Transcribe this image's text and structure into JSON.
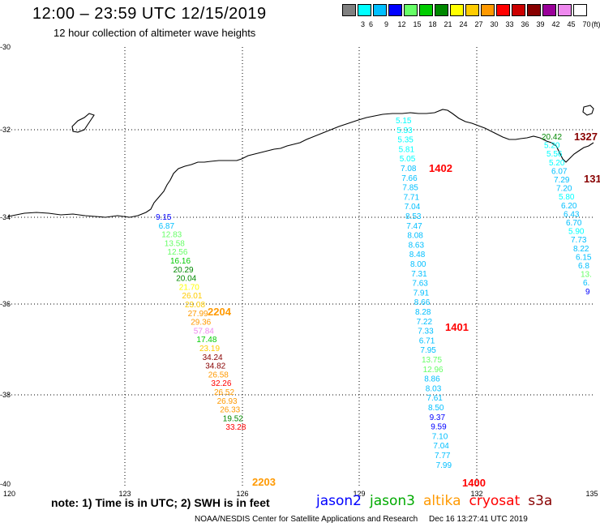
{
  "title": "12:00 – 23:59 UTC 12/15/2019",
  "subtitle": "12 hour collection of altimeter wave heights",
  "color_scale": [
    {
      "label": "3",
      "color": "#808080"
    },
    {
      "label": "6",
      "color": "#00ffff"
    },
    {
      "label": "9",
      "color": "#00bfff"
    },
    {
      "label": "12",
      "color": "#0000ff"
    },
    {
      "label": "15",
      "color": "#66ff66"
    },
    {
      "label": "18",
      "color": "#00cc00"
    },
    {
      "label": "21",
      "color": "#008800"
    },
    {
      "label": "24",
      "color": "#ffff00"
    },
    {
      "label": "27",
      "color": "#ffcc00"
    },
    {
      "label": "30",
      "color": "#ff9900"
    },
    {
      "label": "33",
      "color": "#ff0000"
    },
    {
      "label": "36",
      "color": "#cc0000"
    },
    {
      "label": "39",
      "color": "#880000"
    },
    {
      "label": "42",
      "color": "#990099"
    },
    {
      "label": "45",
      "color": "#ee88ee"
    },
    {
      "label": "70",
      "color": "#ffffff"
    }
  ],
  "scale_unit": "(ft)",
  "lat_labels": [
    "-30",
    "-32",
    "-34",
    "-36",
    "-38",
    "-40"
  ],
  "lon_labels": [
    "120",
    "123",
    "126",
    "129",
    "132",
    "135"
  ],
  "tracks": [
    {
      "name": "west",
      "points": [
        {
          "v": "9.15",
          "c": "#0000ff"
        },
        {
          "v": "6.87",
          "c": "#00bfff"
        },
        {
          "v": "12.83",
          "c": "#66ff66"
        },
        {
          "v": "13.58",
          "c": "#66ff66"
        },
        {
          "v": "12.56",
          "c": "#66ff66"
        },
        {
          "v": "16.16",
          "c": "#00cc00"
        },
        {
          "v": "20.29",
          "c": "#008800"
        },
        {
          "v": "20.04",
          "c": "#008800"
        },
        {
          "v": "21.70",
          "c": "#ffff00"
        },
        {
          "v": "26.01",
          "c": "#ffcc00"
        },
        {
          "v": "23.08",
          "c": "#ffcc00"
        },
        {
          "v": "27.99",
          "c": "#ff9900"
        },
        {
          "v": "29.36",
          "c": "#ff9900"
        },
        {
          "v": "57.84",
          "c": "#ee88ee"
        },
        {
          "v": "17.48",
          "c": "#00cc00"
        },
        {
          "v": "23.19",
          "c": "#ffcc00"
        },
        {
          "v": "34.24",
          "c": "#880000"
        },
        {
          "v": "34.82",
          "c": "#880000"
        },
        {
          "v": "26.58",
          "c": "#ff9900"
        },
        {
          "v": "32.26",
          "c": "#ff0000"
        },
        {
          "v": "26.52",
          "c": "#ff9900"
        },
        {
          "v": "26.93",
          "c": "#ff9900"
        },
        {
          "v": "26.33",
          "c": "#ff9900"
        },
        {
          "v": "19.52",
          "c": "#008800"
        },
        {
          "v": "33.28",
          "c": "#ff0000"
        }
      ]
    },
    {
      "name": "middle",
      "points": [
        {
          "v": "5.15",
          "c": "#00ffff"
        },
        {
          "v": "5.33",
          "c": "#00ffff"
        },
        {
          "v": "5.35",
          "c": "#00ffff"
        },
        {
          "v": "5.81",
          "c": "#00ffff"
        },
        {
          "v": "5.05",
          "c": "#00ffff"
        },
        {
          "v": "7.08",
          "c": "#00bfff"
        },
        {
          "v": "7.66",
          "c": "#00bfff"
        },
        {
          "v": "7.85",
          "c": "#00bfff"
        },
        {
          "v": "7.71",
          "c": "#00bfff"
        },
        {
          "v": "7.04",
          "c": "#00bfff"
        },
        {
          "v": "8.53",
          "c": "#00bfff"
        },
        {
          "v": "7.47",
          "c": "#00bfff"
        },
        {
          "v": "8.08",
          "c": "#00bfff"
        },
        {
          "v": "8.63",
          "c": "#00bfff"
        },
        {
          "v": "8.48",
          "c": "#00bfff"
        },
        {
          "v": "8.00",
          "c": "#00bfff"
        },
        {
          "v": "7.31",
          "c": "#00bfff"
        },
        {
          "v": "7.63",
          "c": "#00bfff"
        },
        {
          "v": "7.91",
          "c": "#00bfff"
        },
        {
          "v": "8.66",
          "c": "#00bfff"
        },
        {
          "v": "8.28",
          "c": "#00bfff"
        },
        {
          "v": "7.22",
          "c": "#00bfff"
        },
        {
          "v": "7.33",
          "c": "#00bfff"
        },
        {
          "v": "6.71",
          "c": "#00bfff"
        },
        {
          "v": "7.95",
          "c": "#00bfff"
        },
        {
          "v": "13.75",
          "c": "#66ff66"
        },
        {
          "v": "12.96",
          "c": "#66ff66"
        },
        {
          "v": "8.86",
          "c": "#00bfff"
        },
        {
          "v": "8.03",
          "c": "#00bfff"
        },
        {
          "v": "7.61",
          "c": "#00bfff"
        },
        {
          "v": "8.50",
          "c": "#00bfff"
        },
        {
          "v": "9.37",
          "c": "#0000ff"
        },
        {
          "v": "9.59",
          "c": "#0000ff"
        },
        {
          "v": "7.10",
          "c": "#00bfff"
        },
        {
          "v": "7.04",
          "c": "#00bfff"
        },
        {
          "v": "7.77",
          "c": "#00bfff"
        },
        {
          "v": "7.99",
          "c": "#00bfff"
        }
      ]
    },
    {
      "name": "east",
      "points": [
        {
          "v": "20.42",
          "c": "#008800"
        },
        {
          "v": "5.20",
          "c": "#00ffff"
        },
        {
          "v": "5.56",
          "c": "#00ffff"
        },
        {
          "v": "5.20",
          "c": "#00ffff"
        },
        {
          "v": "6.07",
          "c": "#00bfff"
        },
        {
          "v": "7.29",
          "c": "#00bfff"
        },
        {
          "v": "7.20",
          "c": "#00bfff"
        },
        {
          "v": "5.80",
          "c": "#00ffff"
        },
        {
          "v": "6.20",
          "c": "#00bfff"
        },
        {
          "v": "6.43",
          "c": "#00bfff"
        },
        {
          "v": "6.70",
          "c": "#00bfff"
        },
        {
          "v": "5.90",
          "c": "#00ffff"
        },
        {
          "v": "7.73",
          "c": "#00bfff"
        },
        {
          "v": "8.22",
          "c": "#00bfff"
        },
        {
          "v": "6.15",
          "c": "#00bfff"
        },
        {
          "v": "6.8",
          "c": "#00bfff"
        },
        {
          "v": "13.",
          "c": "#66ff66"
        },
        {
          "v": "6.",
          "c": "#00bfff"
        },
        {
          "v": "9",
          "c": "#0000ff"
        }
      ]
    }
  ],
  "time_labels": [
    {
      "text": "2204",
      "c": "#ff9900"
    },
    {
      "text": "2203",
      "c": "#ff9900"
    },
    {
      "text": "1402",
      "c": "#ff0000"
    },
    {
      "text": "1401",
      "c": "#ff0000"
    },
    {
      "text": "1400",
      "c": "#ff0000"
    },
    {
      "text": "1327",
      "c": "#880000"
    },
    {
      "text": "131",
      "c": "#880000"
    }
  ],
  "note": "note:  1) Time is in UTC;  2) SWH is in feet",
  "legend": [
    {
      "name": "jason2",
      "color": "#0000ff"
    },
    {
      "name": "jason3",
      "color": "#00aa00"
    },
    {
      "name": "altika",
      "color": "#ff9900"
    },
    {
      "name": "cryosat",
      "color": "#ff0000"
    },
    {
      "name": "s3a",
      "color": "#880000"
    }
  ],
  "footer_left": "NOAA/NESDIS Center for Satellite Applications and Research",
  "footer_right": "Dec 16 13:27:41 UTC 2019"
}
